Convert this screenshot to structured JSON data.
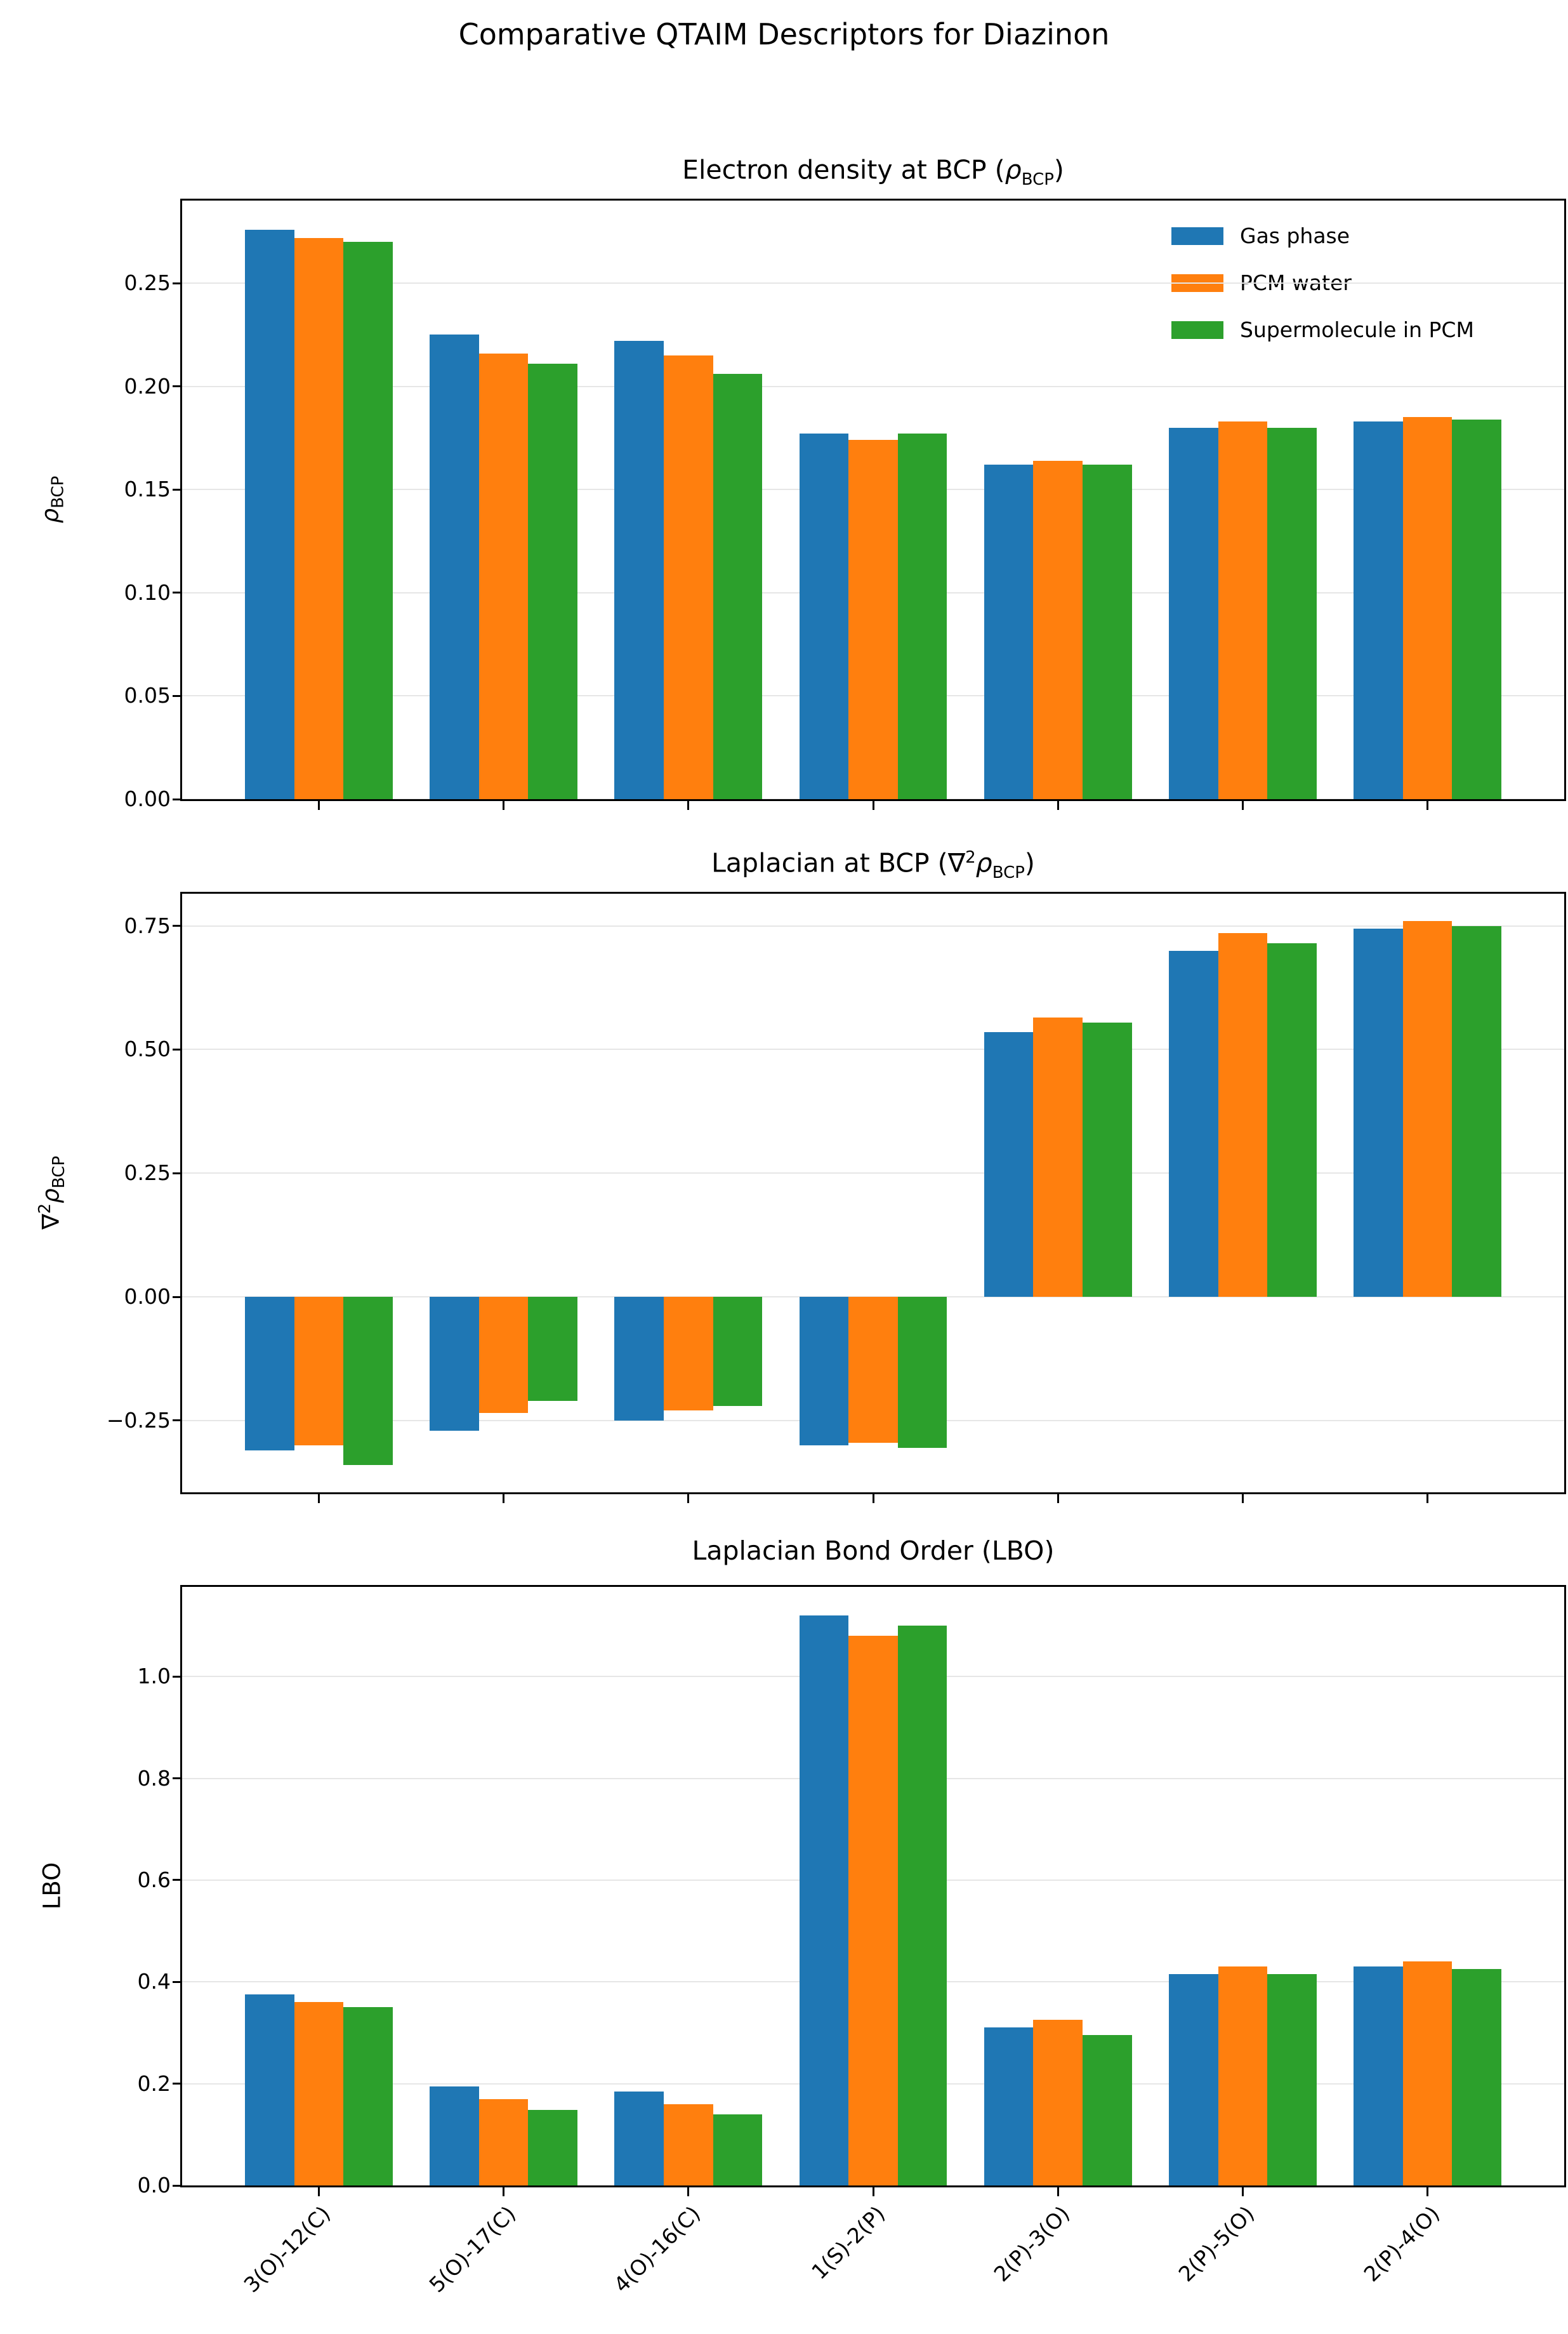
{
  "figure": {
    "suptitle": "Comparative QTAIM Descriptors for Diazinon",
    "background": "#ffffff",
    "text_color": "#000000",
    "grid_color": "#e6e6e6"
  },
  "legend": {
    "position": "upper right of first subplot",
    "items": [
      {
        "label": "Gas phase",
        "color": "#1f77b4"
      },
      {
        "label": "PCM water",
        "color": "#ff7f0e"
      },
      {
        "label": "Supermolecule in PCM",
        "color": "#2ca02c"
      }
    ]
  },
  "chart_data": [
    {
      "id": "rho-bcp",
      "type": "bar",
      "title_text": "Electron density at BCP (rho_BCP)",
      "title_parts": {
        "pre": "Electron density at BCP (",
        "nabla": "",
        "sup": "",
        "rho": "ρ",
        "sub": "BCP",
        "post": ")"
      },
      "ylabel_text": "rho_BCP",
      "ylabel_parts": {
        "nabla": "",
        "sup": "",
        "rho": "ρ",
        "sub": "BCP",
        "text": ""
      },
      "categories": [
        "3(O)-12(C)",
        "5(O)-17(C)",
        "4(O)-16(C)",
        "1(S)-2(P)",
        "2(P)-3(O)",
        "2(P)-5(O)",
        "2(P)-4(O)"
      ],
      "series": [
        {
          "name": "Gas phase",
          "color": "#1f77b4",
          "values": [
            0.276,
            0.225,
            0.222,
            0.177,
            0.162,
            0.18,
            0.183
          ]
        },
        {
          "name": "PCM water",
          "color": "#ff7f0e",
          "values": [
            0.272,
            0.216,
            0.215,
            0.174,
            0.164,
            0.183,
            0.185
          ]
        },
        {
          "name": "Supermolecule in PCM",
          "color": "#2ca02c",
          "values": [
            0.27,
            0.211,
            0.206,
            0.177,
            0.162,
            0.18,
            0.184
          ]
        }
      ],
      "ylim": [
        0,
        0.29
      ],
      "yticks": [
        {
          "v": 0.0,
          "label": "0.00"
        },
        {
          "v": 0.05,
          "label": "0.05"
        },
        {
          "v": 0.1,
          "label": "0.10"
        },
        {
          "v": 0.15,
          "label": "0.15"
        },
        {
          "v": 0.2,
          "label": "0.20"
        },
        {
          "v": 0.25,
          "label": "0.25"
        }
      ],
      "grid": true,
      "show_legend": true,
      "show_xticklabels": false
    },
    {
      "id": "laplacian-bcp",
      "type": "bar",
      "title_text": "Laplacian at BCP (nabla^2 rho_BCP)",
      "title_parts": {
        "pre": "Laplacian at BCP (",
        "nabla": "∇",
        "sup": "2",
        "rho": "ρ",
        "sub": "BCP",
        "post": ")"
      },
      "ylabel_text": "nabla^2 rho_BCP",
      "ylabel_parts": {
        "nabla": "∇",
        "sup": "2",
        "rho": "ρ",
        "sub": "BCP",
        "text": ""
      },
      "categories": [
        "3(O)-12(C)",
        "5(O)-17(C)",
        "4(O)-16(C)",
        "1(S)-2(P)",
        "2(P)-3(O)",
        "2(P)-5(O)",
        "2(P)-4(O)"
      ],
      "series": [
        {
          "name": "Gas phase",
          "color": "#1f77b4",
          "values": [
            -0.31,
            -0.27,
            -0.25,
            -0.3,
            0.535,
            0.7,
            0.745
          ]
        },
        {
          "name": "PCM water",
          "color": "#ff7f0e",
          "values": [
            -0.3,
            -0.235,
            -0.23,
            -0.295,
            0.565,
            0.735,
            0.76
          ]
        },
        {
          "name": "Supermolecule in PCM",
          "color": "#2ca02c",
          "values": [
            -0.34,
            -0.21,
            -0.22,
            -0.305,
            0.555,
            0.715,
            0.75
          ]
        }
      ],
      "ylim": [
        -0.395,
        0.815
      ],
      "yticks": [
        {
          "v": -0.25,
          "label": "−0.25"
        },
        {
          "v": 0.0,
          "label": "0.00"
        },
        {
          "v": 0.25,
          "label": "0.25"
        },
        {
          "v": 0.5,
          "label": "0.50"
        },
        {
          "v": 0.75,
          "label": "0.75"
        }
      ],
      "grid": true,
      "show_legend": false,
      "show_xticklabels": false
    },
    {
      "id": "lbo",
      "type": "bar",
      "title_text": "Laplacian Bond Order (LBO)",
      "title_parts": {
        "pre": "Laplacian Bond Order (LBO)",
        "nabla": "",
        "sup": "",
        "rho": "",
        "sub": "",
        "post": ""
      },
      "ylabel_text": "LBO",
      "ylabel_parts": {
        "nabla": "",
        "sup": "",
        "rho": "",
        "sub": "",
        "text": "LBO"
      },
      "categories": [
        "3(O)-12(C)",
        "5(O)-17(C)",
        "4(O)-16(C)",
        "1(S)-2(P)",
        "2(P)-3(O)",
        "2(P)-5(O)",
        "2(P)-4(O)"
      ],
      "series": [
        {
          "name": "Gas phase",
          "color": "#1f77b4",
          "values": [
            0.375,
            0.195,
            0.185,
            1.12,
            0.31,
            0.415,
            0.43
          ]
        },
        {
          "name": "PCM water",
          "color": "#ff7f0e",
          "values": [
            0.36,
            0.17,
            0.16,
            1.08,
            0.325,
            0.43,
            0.44
          ]
        },
        {
          "name": "Supermolecule in PCM",
          "color": "#2ca02c",
          "values": [
            0.35,
            0.148,
            0.14,
            1.1,
            0.295,
            0.415,
            0.425
          ]
        }
      ],
      "ylim": [
        0,
        1.176
      ],
      "yticks": [
        {
          "v": 0.0,
          "label": "0.0"
        },
        {
          "v": 0.2,
          "label": "0.2"
        },
        {
          "v": 0.4,
          "label": "0.4"
        },
        {
          "v": 0.6,
          "label": "0.6"
        },
        {
          "v": 0.8,
          "label": "0.8"
        },
        {
          "v": 1.0,
          "label": "1.0"
        }
      ],
      "grid": true,
      "show_legend": false,
      "show_xticklabels": true
    }
  ]
}
